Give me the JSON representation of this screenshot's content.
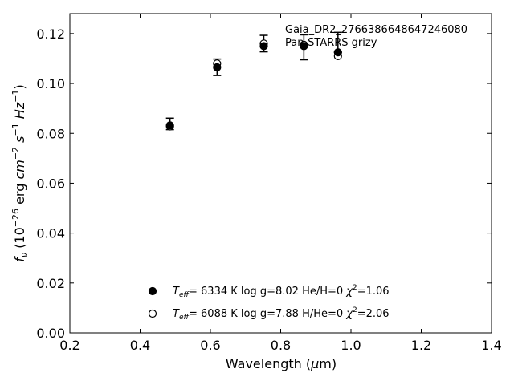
{
  "chart_data": {
    "type": "scatter",
    "title": "",
    "annotations": [
      "Gaia_DR2_2766386648647246080",
      "Pan-STARRS grizy"
    ],
    "xlabel": "Wavelength (μm)",
    "ylabel": "f_ν (10^-26 erg cm^-2 s^-1 Hz^-1)",
    "xlim": [
      0.2,
      1.4
    ],
    "ylim": [
      0.0,
      0.128
    ],
    "x_ticks": [
      0.2,
      0.4,
      0.6,
      0.8,
      1.0,
      1.2,
      1.4
    ],
    "x_tick_labels": [
      "0.2",
      "0.4",
      "0.6",
      "0.8",
      "1.0",
      "1.2",
      "1.4"
    ],
    "y_ticks": [
      0.0,
      0.02,
      0.04,
      0.06,
      0.08,
      0.1,
      0.12
    ],
    "y_tick_labels": [
      "0.00",
      "0.02",
      "0.04",
      "0.06",
      "0.08",
      "0.10",
      "0.12"
    ],
    "grid": false,
    "legend_position": "lower-center",
    "observed": {
      "x": [
        0.485,
        0.619,
        0.752,
        0.866,
        0.963
      ],
      "y": [
        0.0838,
        0.1065,
        0.116,
        0.1145,
        0.1165
      ],
      "err": [
        0.0023,
        0.0033,
        0.0033,
        0.005,
        0.004
      ]
    },
    "series": [
      {
        "name": "Teff= 6334 K log g=8.02 He/H=0 χ2=1.06",
        "marker": "filled",
        "x": [
          0.485,
          0.619,
          0.752,
          0.866,
          0.963
        ],
        "y": [
          0.0832,
          0.1065,
          0.115,
          0.115,
          0.1125
        ]
      },
      {
        "name": "Teff= 6088 K log g=7.88 H/He=0 χ2=2.06",
        "marker": "open",
        "x": [
          0.485,
          0.619,
          0.752,
          0.866,
          0.963
        ],
        "y": [
          0.0828,
          0.108,
          0.116,
          0.1155,
          0.111
        ]
      }
    ]
  }
}
